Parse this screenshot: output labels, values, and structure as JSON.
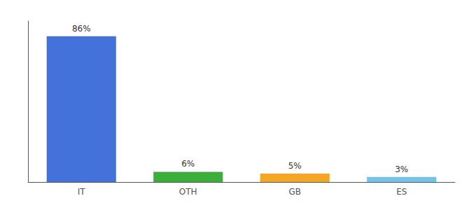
{
  "chart_data": {
    "type": "bar",
    "categories": [
      "IT",
      "OTH",
      "GB",
      "ES"
    ],
    "values": [
      86,
      6,
      5,
      3
    ],
    "value_labels": [
      "86%",
      "6%",
      "5%",
      "3%"
    ],
    "colors": [
      "#4472db",
      "#3aaf3a",
      "#f5a623",
      "#6ec6f0"
    ],
    "ylim": [
      0,
      95
    ],
    "data_labels": true,
    "tick_labels": "x",
    "grid": false
  }
}
